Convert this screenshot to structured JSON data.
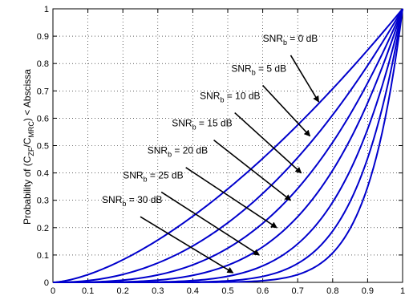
{
  "chart_data": {
    "type": "line",
    "title": "",
    "xlabel": "",
    "ylabel": "Probability of (C_ZF/C_MRC) < Abscissa",
    "ylabel_parts": {
      "prefix": "Probability of (C",
      "sub1": "ZF",
      "mid": "/C",
      "sub2": "MRC",
      "suffix": ") < Abscissa"
    },
    "xlim": [
      0,
      1
    ],
    "ylim": [
      0,
      1
    ],
    "xticks": [
      "0",
      "0.1",
      "0.2",
      "0.3",
      "0.4",
      "0.5",
      "0.6",
      "0.7",
      "0.8",
      "0.9",
      "1"
    ],
    "yticks": [
      "0",
      "0.1",
      "0.2",
      "0.3",
      "0.4",
      "0.5",
      "0.6",
      "0.7",
      "0.8",
      "0.9",
      "1"
    ],
    "grid": true,
    "line_color": "#0000cc",
    "series": [
      {
        "name": "SNR_b = 0 dB",
        "label_main": "SNR",
        "label_sub": "b",
        "label_rest": " = 0 dB",
        "exponent": 1.55,
        "label_at": [
          0.6,
          0.88
        ],
        "arrow_from": [
          0.68,
          0.83
        ],
        "arrow_to": [
          0.76,
          0.66
        ]
      },
      {
        "name": "SNR_b = 5 dB",
        "label_main": "SNR",
        "label_sub": "b",
        "label_rest": " = 5 dB",
        "exponent": 2.2,
        "label_at": [
          0.51,
          0.77
        ],
        "arrow_from": [
          0.6,
          0.72
        ],
        "arrow_to": [
          0.735,
          0.535
        ]
      },
      {
        "name": "SNR_b = 10 dB",
        "label_main": "SNR",
        "label_sub": "b",
        "label_rest": " = 10 dB",
        "exponent": 3.0,
        "label_at": [
          0.42,
          0.67
        ],
        "arrow_from": [
          0.52,
          0.62
        ],
        "arrow_to": [
          0.71,
          0.4
        ]
      },
      {
        "name": "SNR_b = 15 dB",
        "label_main": "SNR",
        "label_sub": "b",
        "label_rest": " = 15 dB",
        "exponent": 4.0,
        "label_at": [
          0.34,
          0.57
        ],
        "arrow_from": [
          0.46,
          0.52
        ],
        "arrow_to": [
          0.68,
          0.3
        ]
      },
      {
        "name": "SNR_b = 20 dB",
        "label_main": "SNR",
        "label_sub": "b",
        "label_rest": " = 20 dB",
        "exponent": 5.5,
        "label_at": [
          0.27,
          0.47
        ],
        "arrow_from": [
          0.38,
          0.42
        ],
        "arrow_to": [
          0.64,
          0.2
        ]
      },
      {
        "name": "SNR_b = 25 dB",
        "label_main": "SNR",
        "label_sub": "b",
        "label_rest": " = 25 dB",
        "exponent": 7.5,
        "label_at": [
          0.2,
          0.38
        ],
        "arrow_from": [
          0.31,
          0.33
        ],
        "arrow_to": [
          0.59,
          0.1
        ]
      },
      {
        "name": "SNR_b = 30 dB",
        "label_main": "SNR",
        "label_sub": "b",
        "label_rest": " = 30 dB",
        "exponent": 10.0,
        "label_at": [
          0.14,
          0.29
        ],
        "arrow_from": [
          0.25,
          0.24
        ],
        "arrow_to": [
          0.515,
          0.035
        ]
      }
    ]
  }
}
